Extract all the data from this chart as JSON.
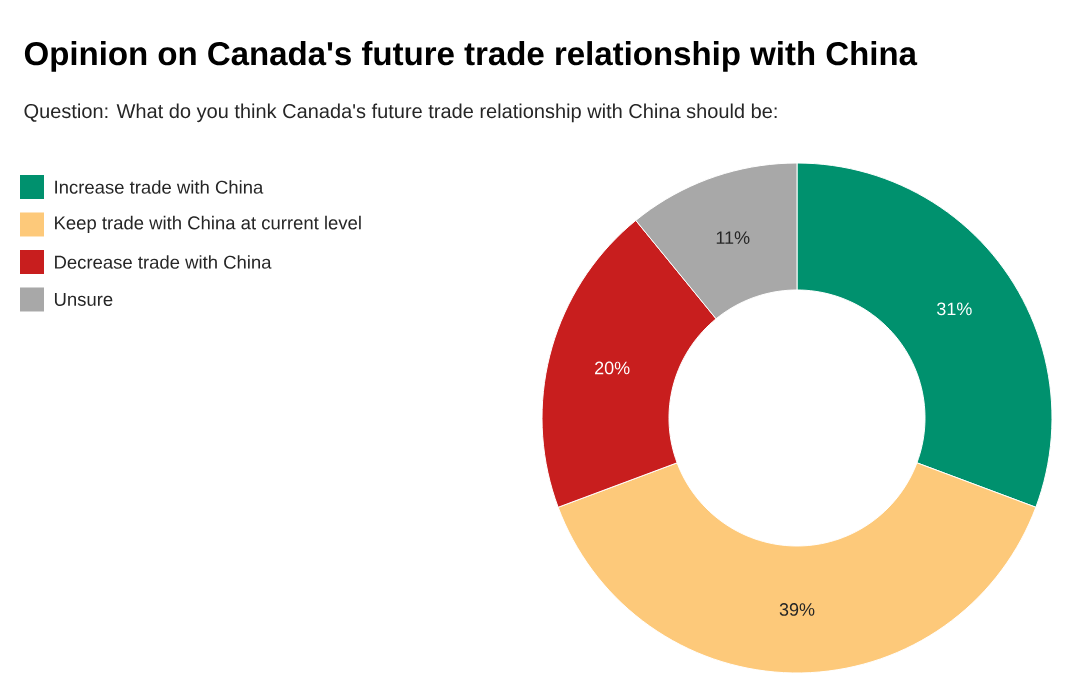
{
  "chart_data": {
    "type": "donut",
    "title": "Opinion on Canada's future trade relationship with China",
    "subtitle": "Question: What do you think Canada's future trade relationship with China should be:",
    "categories": [
      "Increase trade with China",
      "Keep trade with China at current level",
      "Decrease trade with China",
      "Unsure"
    ],
    "values": [
      31,
      39,
      20,
      11
    ],
    "colors": [
      "#00916e",
      "#fdc97a",
      "#c81e1e",
      "#a8a8a8"
    ],
    "value_labels": [
      "31%",
      "39%",
      "20%",
      "11%"
    ],
    "legend": "top left"
  }
}
